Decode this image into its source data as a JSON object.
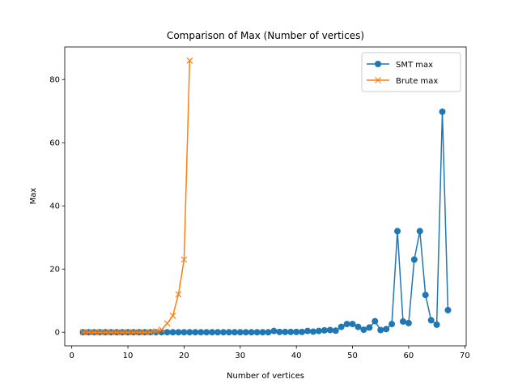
{
  "chart_data": {
    "type": "line",
    "title": "Comparison of Max (Number of vertices)",
    "x_label": "Number of vertices",
    "y_label": "Max",
    "series": [
      {
        "name": "SMT max",
        "color": "#1f77b4",
        "marker": "o",
        "x": [
          2,
          3,
          4,
          5,
          6,
          7,
          8,
          9,
          10,
          11,
          12,
          13,
          14,
          15,
          16,
          17,
          18,
          19,
          20,
          21,
          22,
          23,
          24,
          25,
          26,
          27,
          28,
          29,
          30,
          31,
          32,
          33,
          34,
          35,
          36,
          37,
          38,
          39,
          40,
          41,
          42,
          43,
          44,
          45,
          46,
          47,
          48,
          49,
          50,
          51,
          52,
          53,
          54,
          55,
          56,
          57,
          58,
          59,
          60,
          61,
          62,
          63,
          64,
          65,
          66,
          67
        ],
        "values": [
          0,
          0,
          0,
          0,
          0,
          0,
          0,
          0,
          0,
          0,
          0,
          0,
          0,
          0,
          0,
          0,
          0,
          0,
          0,
          0,
          0,
          0,
          0,
          0,
          0,
          0,
          0,
          0,
          0,
          0,
          0,
          0,
          0,
          0,
          0.4,
          0.1,
          0.1,
          0.1,
          0.1,
          0.1,
          0.4,
          0.2,
          0.4,
          0.6,
          0.7,
          0.5,
          1.7,
          2.6,
          2.6,
          1.7,
          0.8,
          1.5,
          3.5,
          0.7,
          1.0,
          2.6,
          32,
          3.4,
          2.9,
          23,
          32,
          11.8,
          3.8,
          2.4,
          69.8,
          7
        ]
      },
      {
        "name": "Brute max",
        "color": "#ff7f0e",
        "marker": "x",
        "x": [
          2,
          3,
          4,
          5,
          6,
          7,
          8,
          9,
          10,
          11,
          12,
          13,
          14,
          15,
          16,
          17,
          18,
          19,
          20,
          21
        ],
        "values": [
          0,
          0,
          0,
          0,
          0,
          0,
          0,
          0,
          0,
          0,
          0,
          0,
          0,
          0.3,
          0.8,
          2.8,
          5.2,
          12,
          23,
          86
        ]
      }
    ],
    "xlim": [
      -1.25,
      70.25
    ],
    "xticks": [
      0,
      10,
      20,
      30,
      40,
      50,
      60,
      70
    ],
    "ylim": [
      -4.3,
      90.3
    ],
    "yticks": [
      0,
      20,
      40,
      60,
      80
    ],
    "legend": "upper right"
  }
}
